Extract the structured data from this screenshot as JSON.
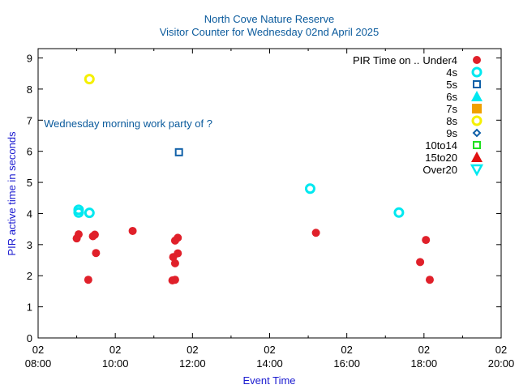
{
  "chart_data": {
    "type": "scatter",
    "title": "North Cove Nature Reserve",
    "subtitle": "Visitor Counter for Wednesday 02nd April 2025",
    "xlabel": "Event Time",
    "ylabel": "PIR active time in seconds",
    "xlim": [
      8,
      20
    ],
    "ylim": [
      0,
      9.3
    ],
    "x_ticks": [
      {
        "x": 8,
        "date": "02",
        "time": "08:00"
      },
      {
        "x": 10,
        "date": "02",
        "time": "10:00"
      },
      {
        "x": 12,
        "date": "02",
        "time": "12:00"
      },
      {
        "x": 14,
        "date": "02",
        "time": "14:00"
      },
      {
        "x": 16,
        "date": "02",
        "time": "16:00"
      },
      {
        "x": 18,
        "date": "02",
        "time": "18:00"
      },
      {
        "x": 20,
        "date": "02",
        "time": "20:00"
      }
    ],
    "y_ticks": [
      0,
      1,
      2,
      3,
      4,
      5,
      6,
      7,
      8,
      9
    ],
    "legend_title": "PIR Time on ..",
    "legend_position": "top-right",
    "annotations": [
      {
        "text": "Wednesday morning work party of ?",
        "x": 8.15,
        "y": 6.9
      }
    ],
    "series": [
      {
        "name": "Under4",
        "marker": "circle-filled",
        "color": "#e0202a",
        "points": [
          [
            9.0,
            3.2
          ],
          [
            9.05,
            3.33
          ],
          [
            9.3,
            1.87
          ],
          [
            9.42,
            3.27
          ],
          [
            9.47,
            3.32
          ],
          [
            9.5,
            2.73
          ],
          [
            10.45,
            3.44
          ],
          [
            11.5,
            2.6
          ],
          [
            11.48,
            1.85
          ],
          [
            11.55,
            1.87
          ],
          [
            11.55,
            3.13
          ],
          [
            11.55,
            2.4
          ],
          [
            11.62,
            3.22
          ],
          [
            11.62,
            2.72
          ],
          [
            15.2,
            3.38
          ],
          [
            17.9,
            2.44
          ],
          [
            18.05,
            3.15
          ],
          [
            18.15,
            1.87
          ]
        ]
      },
      {
        "name": "4s",
        "marker": "circle-open",
        "color": "#00e8f0",
        "points": [
          [
            9.05,
            4.12
          ],
          [
            9.05,
            4.03
          ],
          [
            9.33,
            4.02
          ],
          [
            15.05,
            4.8
          ],
          [
            17.35,
            4.03
          ]
        ]
      },
      {
        "name": "5s",
        "marker": "square-open",
        "color": "#1060a8",
        "points": [
          [
            11.65,
            5.97
          ]
        ]
      },
      {
        "name": "6s",
        "marker": "triangle-filled",
        "color": "#00e8f0",
        "points": []
      },
      {
        "name": "7s",
        "marker": "square-filled",
        "color": "#f0a000",
        "points": []
      },
      {
        "name": "8s",
        "marker": "circle-open",
        "color": "#f5f000",
        "points": [
          [
            9.33,
            8.32
          ]
        ]
      },
      {
        "name": "9s",
        "marker": "diamond-open",
        "color": "#1060a8",
        "points": []
      },
      {
        "name": "10to14",
        "marker": "square-open",
        "color": "#20e020",
        "points": []
      },
      {
        "name": "15to20",
        "marker": "triangle-filled",
        "color": "#e01010",
        "points": []
      },
      {
        "name": "Over20",
        "marker": "triangle-down-open",
        "color": "#00e8f0",
        "points": []
      }
    ]
  }
}
